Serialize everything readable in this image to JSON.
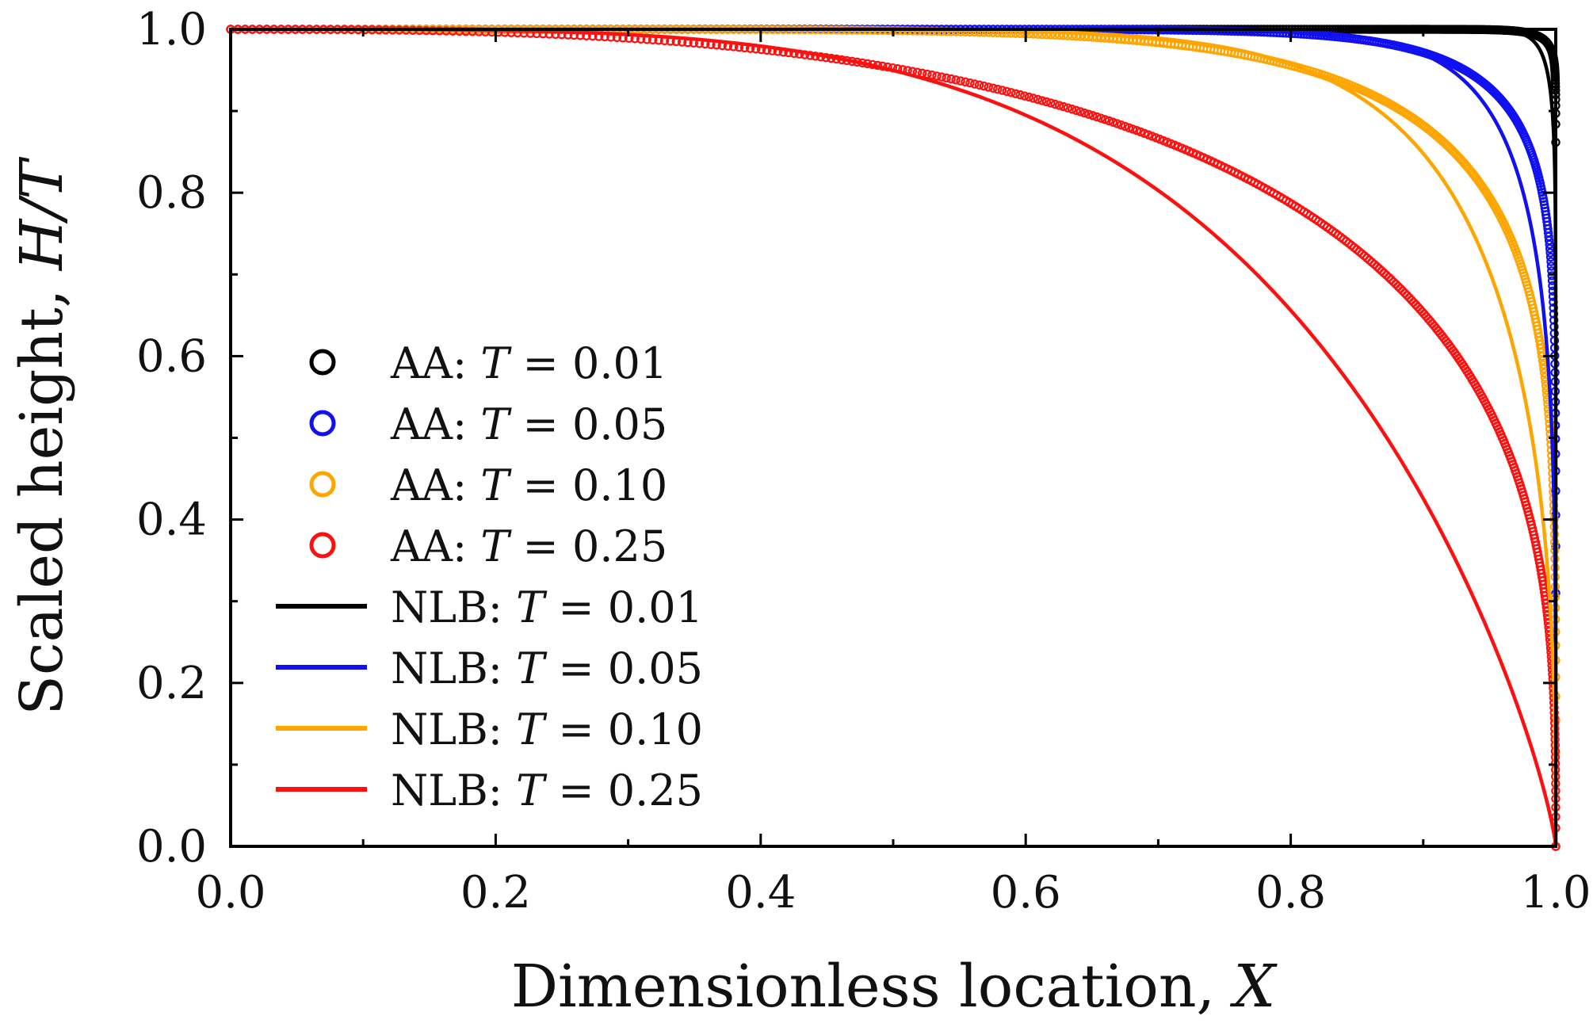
{
  "chart_data": {
    "type": "line",
    "title": "",
    "xlabel": "Dimensionless location, ",
    "xlabel_var": "X",
    "ylabel": "Scaled height, ",
    "ylabel_var": "H/T",
    "xlim": [
      0.0,
      1.0
    ],
    "ylim": [
      0.0,
      1.0
    ],
    "x_ticks": [
      "0.0",
      "0.2",
      "0.4",
      "0.6",
      "0.8",
      "1.0"
    ],
    "y_ticks": [
      "0.0",
      "0.2",
      "0.4",
      "0.6",
      "0.8",
      "1.0"
    ],
    "grid": false,
    "legend_position": "left-center",
    "series": [
      {
        "name": "AA: T = 0.01",
        "prefix": "AA: ",
        "var": "T",
        "value_text": " = 0.01",
        "kind": "markers",
        "color": "#000000",
        "T": 0.01
      },
      {
        "name": "AA: T = 0.05",
        "prefix": "AA: ",
        "var": "T",
        "value_text": " = 0.05",
        "kind": "markers",
        "color": "#1010f0",
        "T": 0.05
      },
      {
        "name": "AA: T = 0.10",
        "prefix": "AA: ",
        "var": "T",
        "value_text": " = 0.10",
        "kind": "markers",
        "color": "#ffa500",
        "T": 0.1
      },
      {
        "name": "AA: T = 0.25",
        "prefix": "AA: ",
        "var": "T",
        "value_text": " = 0.25",
        "kind": "markers",
        "color": "#ff0f0f",
        "T": 0.25
      },
      {
        "name": "NLB: T = 0.01",
        "prefix": "NLB: ",
        "var": "T",
        "value_text": " = 0.01",
        "kind": "line",
        "color": "#000000",
        "T": 0.01
      },
      {
        "name": "NLB: T = 0.05",
        "prefix": "NLB: ",
        "var": "T",
        "value_text": " = 0.05",
        "kind": "line",
        "color": "#1010f0",
        "T": 0.05
      },
      {
        "name": "NLB: T = 0.10",
        "prefix": "NLB: ",
        "var": "T",
        "value_text": " = 0.10",
        "kind": "line",
        "color": "#ffa500",
        "T": 0.1
      },
      {
        "name": "NLB: T = 0.25",
        "prefix": "NLB: ",
        "var": "T",
        "value_text": " = 0.25",
        "kind": "line",
        "color": "#ff0f0f",
        "T": 0.25
      }
    ]
  }
}
